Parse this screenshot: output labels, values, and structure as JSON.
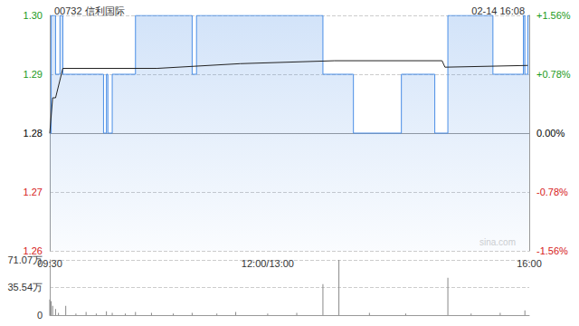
{
  "chart_data": [
    {
      "type": "line",
      "title": "00732 信利国际",
      "subtitle": "02-14 16:08",
      "annotations": [
        "sina.com"
      ],
      "xlim": [
        0,
        330
      ],
      "xticks": [
        {
          "value": 0,
          "label": "09:30"
        },
        {
          "value": 150,
          "label": "12:00/13:00"
        },
        {
          "value": 330,
          "label": "16:00"
        }
      ],
      "ylim": [
        1.26,
        1.3
      ],
      "yticks": [
        1.26,
        1.27,
        1.28,
        1.29,
        {
          "value": 1.3,
          "label": "1.30"
        }
      ],
      "y2lim": [
        -1.56,
        1.56
      ],
      "y2ticks": [
        {
          "value": -1.56,
          "label": "-1.56%"
        },
        {
          "value": -0.78,
          "label": "-0.78%"
        },
        {
          "value": 0,
          "label": "0.00%"
        },
        {
          "value": 0.78,
          "label": "+0.78%"
        },
        {
          "value": 1.56,
          "label": "+1.56%"
        }
      ],
      "grid": true,
      "series": [
        {
          "color": "#4a8ee6",
          "line_style": "step",
          "x": [
            0,
            1,
            4,
            7,
            9,
            37,
            39,
            40,
            43,
            59,
            98,
            101,
            188,
            209,
            242,
            265,
            274,
            305,
            326,
            327,
            329,
            330
          ],
          "values": [
            1.28,
            1.3,
            1.29,
            1.3,
            1.29,
            1.28,
            1.29,
            1.28,
            1.29,
            1.3,
            1.29,
            1.3,
            1.29,
            1.28,
            1.29,
            1.28,
            1.3,
            1.29,
            1.3,
            1.29,
            1.3,
            1.3
          ]
        },
        {
          "color": "#222222",
          "line_style": "solid",
          "x": [
            0,
            2,
            4,
            9,
            74,
            131,
            196,
            270,
            272,
            329
          ],
          "values": [
            1.28,
            1.286,
            1.286,
            1.291,
            1.291,
            1.2918,
            1.2923,
            1.2923,
            1.2912,
            1.2915
          ]
        }
      ]
    },
    {
      "type": "bar",
      "xlim": [
        0,
        330
      ],
      "ylim": [
        0,
        71.07
      ],
      "yticks": [
        0,
        {
          "value": 35.54,
          "label": "35.54万"
        },
        {
          "value": 71.07,
          "label": "71.07万"
        }
      ],
      "grid": true,
      "tick_labels": "y",
      "color": "#888888",
      "x": [
        0,
        1,
        2,
        4,
        6,
        11,
        18,
        25,
        32,
        39,
        43,
        52,
        59,
        70,
        85,
        98,
        115,
        128,
        150,
        170,
        188,
        199,
        220,
        245,
        274,
        290,
        310,
        327
      ],
      "values": [
        20,
        18,
        12,
        8,
        3,
        12,
        2,
        4,
        2,
        5,
        3,
        2,
        4,
        3,
        2,
        3,
        2,
        4,
        2,
        3,
        40,
        71,
        3,
        2,
        48,
        2,
        3,
        6
      ]
    }
  ]
}
